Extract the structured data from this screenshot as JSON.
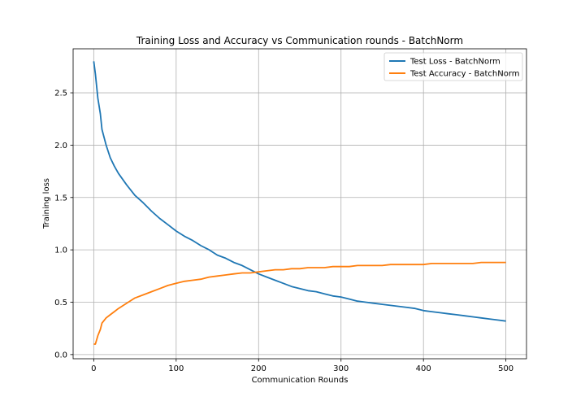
{
  "chart_data": {
    "type": "line",
    "title": "Training Loss and Accuracy vs Communication rounds - BatchNorm",
    "xlabel": "Communication Rounds",
    "ylabel": "Training loss",
    "xlim": [
      -25,
      525
    ],
    "ylim": [
      -0.04,
      2.92
    ],
    "xticks": [
      0,
      100,
      200,
      300,
      400,
      500
    ],
    "yticks": [
      0.0,
      0.5,
      1.0,
      1.5,
      2.0,
      2.5
    ],
    "xtick_labels": [
      "0",
      "100",
      "200",
      "300",
      "400",
      "500"
    ],
    "ytick_labels": [
      "0.0",
      "0.5",
      "1.0",
      "1.5",
      "2.0",
      "2.5"
    ],
    "grid": true,
    "legend_position": "top-right",
    "series": [
      {
        "name": "Test Loss - BatchNorm",
        "color": "#1f77b4",
        "x": [
          0,
          2,
          5,
          8,
          10,
          15,
          20,
          25,
          30,
          40,
          50,
          60,
          70,
          80,
          90,
          100,
          110,
          120,
          130,
          140,
          150,
          160,
          170,
          180,
          190,
          200,
          210,
          220,
          230,
          240,
          250,
          260,
          270,
          280,
          290,
          300,
          310,
          320,
          330,
          340,
          350,
          360,
          370,
          380,
          390,
          400,
          410,
          420,
          430,
          440,
          450,
          460,
          470,
          480,
          490,
          500
        ],
        "y": [
          2.8,
          2.68,
          2.45,
          2.3,
          2.15,
          2.0,
          1.88,
          1.8,
          1.73,
          1.62,
          1.52,
          1.45,
          1.37,
          1.3,
          1.24,
          1.18,
          1.13,
          1.09,
          1.04,
          1.0,
          0.95,
          0.92,
          0.88,
          0.85,
          0.81,
          0.77,
          0.74,
          0.71,
          0.68,
          0.65,
          0.63,
          0.61,
          0.6,
          0.58,
          0.56,
          0.55,
          0.53,
          0.51,
          0.5,
          0.49,
          0.48,
          0.47,
          0.46,
          0.45,
          0.44,
          0.42,
          0.41,
          0.4,
          0.39,
          0.38,
          0.37,
          0.36,
          0.35,
          0.34,
          0.33,
          0.32
        ]
      },
      {
        "name": "Test Accuracy - BatchNorm",
        "color": "#ff7f0e",
        "x": [
          0,
          2,
          5,
          8,
          10,
          15,
          20,
          25,
          30,
          40,
          50,
          60,
          70,
          80,
          90,
          100,
          110,
          120,
          130,
          140,
          150,
          160,
          170,
          180,
          190,
          200,
          210,
          220,
          230,
          240,
          250,
          260,
          270,
          280,
          290,
          300,
          310,
          320,
          330,
          340,
          350,
          360,
          370,
          380,
          390,
          400,
          410,
          420,
          430,
          440,
          450,
          460,
          470,
          480,
          490,
          500
        ],
        "y": [
          0.1,
          0.1,
          0.18,
          0.24,
          0.3,
          0.35,
          0.38,
          0.41,
          0.44,
          0.49,
          0.54,
          0.57,
          0.6,
          0.63,
          0.66,
          0.68,
          0.7,
          0.71,
          0.72,
          0.74,
          0.75,
          0.76,
          0.77,
          0.78,
          0.78,
          0.79,
          0.8,
          0.81,
          0.81,
          0.82,
          0.82,
          0.83,
          0.83,
          0.83,
          0.84,
          0.84,
          0.84,
          0.85,
          0.85,
          0.85,
          0.85,
          0.86,
          0.86,
          0.86,
          0.86,
          0.86,
          0.87,
          0.87,
          0.87,
          0.87,
          0.87,
          0.87,
          0.88,
          0.88,
          0.88,
          0.88
        ]
      }
    ]
  }
}
